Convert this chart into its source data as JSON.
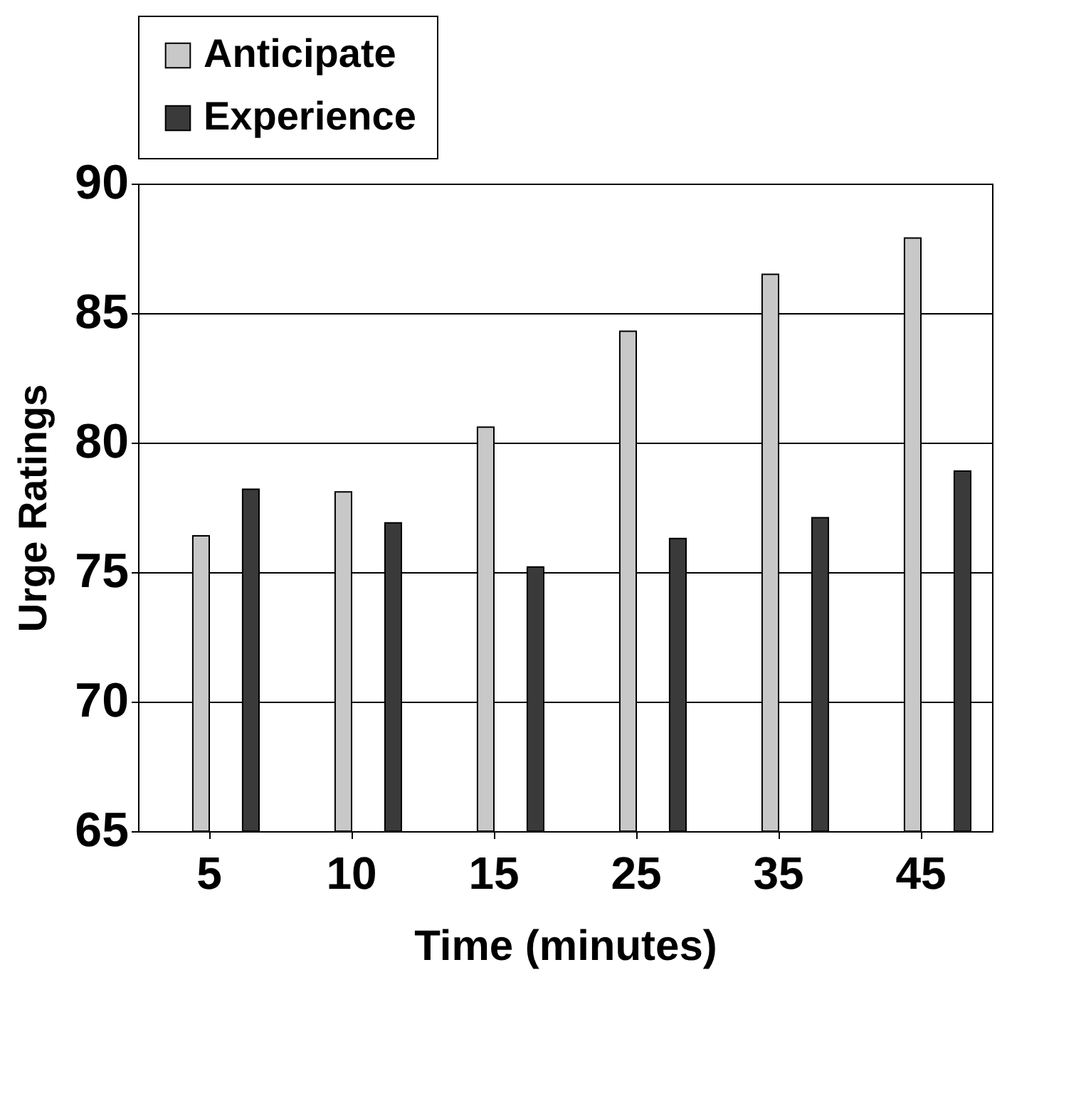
{
  "chart_data": {
    "type": "bar",
    "xlabel": "Time (minutes)",
    "ylabel": "Urge Ratings",
    "categories": [
      "5",
      "10",
      "15",
      "25",
      "35",
      "45"
    ],
    "series": [
      {
        "name": "Anticipate",
        "color": "#c8c8c8",
        "values": [
          76.4,
          78.1,
          80.6,
          84.3,
          86.5,
          87.9
        ]
      },
      {
        "name": "Experience",
        "color": "#3a3a3a",
        "values": [
          78.2,
          76.9,
          75.2,
          76.3,
          77.1,
          78.9
        ]
      }
    ],
    "ylim": [
      65,
      90
    ],
    "yticks": [
      65,
      70,
      75,
      80,
      85,
      90
    ],
    "grid": "y",
    "legend": "top"
  }
}
